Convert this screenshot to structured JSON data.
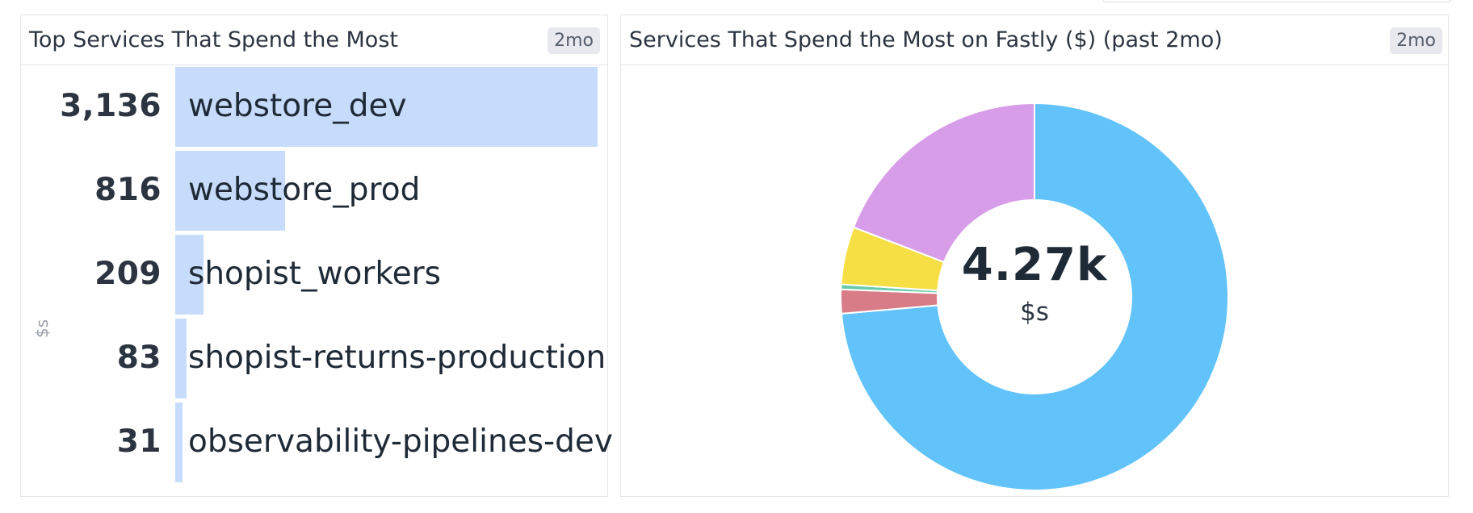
{
  "left_widget": {
    "title": "Top Services That Spend the Most",
    "badge": "2mo",
    "axis_unit": "$s",
    "rows": [
      {
        "value_label": "3,136",
        "name": "webstore_dev",
        "value": 3136
      },
      {
        "value_label": "816",
        "name": "webstore_prod",
        "value": 816
      },
      {
        "value_label": "209",
        "name": "shopist_workers",
        "value": 209
      },
      {
        "value_label": "83",
        "name": "shopist-returns-production",
        "value": 83
      },
      {
        "value_label": "31",
        "name": "observability-pipelines-dev",
        "value": 31
      }
    ],
    "bar_color": "#c7dcfb"
  },
  "right_widget": {
    "title": "Services That Spend the Most on Fastly ($) (past 2mo)",
    "badge": "2mo",
    "center_value": "4.27k",
    "center_unit": "$s"
  },
  "chart_data": [
    {
      "type": "bar",
      "orientation": "horizontal",
      "title": "Top Services That Spend the Most",
      "ylabel": "$s",
      "categories": [
        "webstore_dev",
        "webstore_prod",
        "shopist_workers",
        "shopist-returns-production",
        "observability-pipelines-dev"
      ],
      "values": [
        3136,
        816,
        209,
        83,
        31
      ]
    },
    {
      "type": "pie",
      "donut": true,
      "title": "Services That Spend the Most on Fastly ($) (past 2mo)",
      "total_label": "4.27k",
      "unit": "$s",
      "values": [
        3136,
        85,
        18,
        205,
        816
      ],
      "colors": [
        "#62c3fa",
        "#d87c88",
        "#69cbab",
        "#f6df45",
        "#d89de8"
      ]
    }
  ]
}
